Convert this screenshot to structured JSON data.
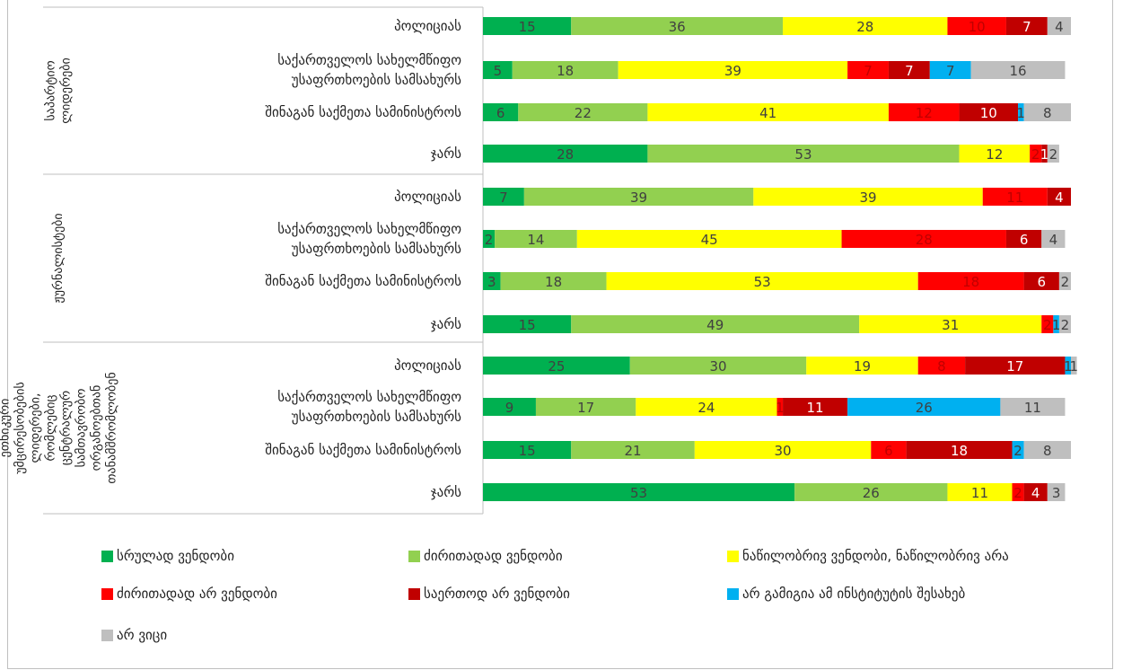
{
  "chart_data": {
    "type": "bar",
    "orientation": "horizontal",
    "stacked": true,
    "xlim": [
      0,
      100
    ],
    "grid": false,
    "legend_position": "bottom",
    "groups": [
      {
        "name": "საპარტიო ლიდერები",
        "categories": [
          "პოლიციას",
          "საქართველოს სახელმწიფო უსაფრთხოების სამსახურს",
          "შინაგან საქმეთა სამინისტროს",
          "ჯარს"
        ]
      },
      {
        "name": "ჟურნალისტები",
        "categories": [
          "პოლიციას",
          "საქართველოს სახელმწიფო უსაფრთხოების სამსახურს",
          "შინაგან საქმეთა სამინისტროს",
          "ჯარს"
        ]
      },
      {
        "name": "ეთნიკური უმცირესობების ლიდერები, რომლებიც ცენტრალურ სამთავრობო ორგანოებთან თანამშრომლობენ",
        "categories": [
          "პოლიციას",
          "საქართველოს სახელმწიფო უსაფრთხოების სამსახურს",
          "შინაგან საქმეთა სამინისტროს",
          "ჯარს"
        ]
      }
    ],
    "series": [
      {
        "name": "სრულად ვენდობი",
        "color": "#00b050",
        "label_color": "#404040",
        "values": [
          15,
          5,
          6,
          28,
          7,
          2,
          3,
          15,
          25,
          9,
          15,
          53
        ]
      },
      {
        "name": "ძირითადად ვენდობი",
        "color": "#92d050",
        "label_color": "#404040",
        "values": [
          36,
          18,
          22,
          53,
          39,
          14,
          18,
          49,
          30,
          17,
          21,
          26
        ]
      },
      {
        "name": "ნაწილობრივ ვენდობი, ნაწილობრივ არა",
        "color": "#ffff00",
        "label_color": "#404040",
        "values": [
          28,
          39,
          41,
          12,
          39,
          45,
          53,
          31,
          19,
          24,
          30,
          11
        ]
      },
      {
        "name": "ძირითადად არ ვენდობი",
        "color": "#ff0000",
        "label_color": "#c00000",
        "values": [
          10,
          7,
          12,
          2,
          11,
          28,
          18,
          2,
          8,
          1,
          6,
          2
        ]
      },
      {
        "name": "საერთოდ არ ვენდობი",
        "color": "#c00000",
        "label_color": "#ffffff",
        "values": [
          7,
          7,
          10,
          1,
          4,
          6,
          6,
          0,
          17,
          11,
          18,
          4
        ]
      },
      {
        "name": "არ გამიგია ამ ინსტიტუტის შესახებ",
        "color": "#00b0f0",
        "label_color": "#404040",
        "values": [
          0,
          7,
          1,
          0,
          0,
          0,
          0,
          1,
          1,
          26,
          2,
          0
        ]
      },
      {
        "name": "არ ვიცი",
        "color": "#bfbfbf",
        "label_color": "#404040",
        "values": [
          4,
          16,
          8,
          2,
          0,
          4,
          2,
          2,
          1,
          11,
          8,
          3
        ]
      }
    ]
  }
}
